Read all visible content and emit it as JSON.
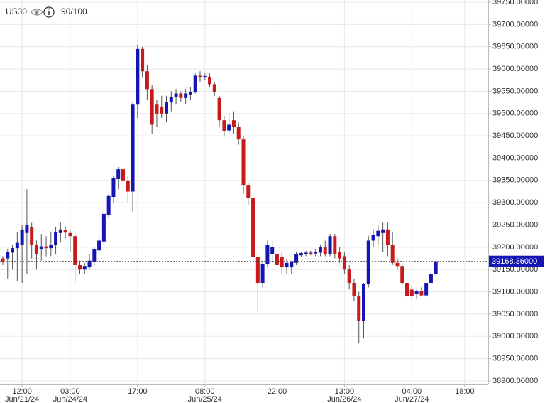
{
  "chart_data": {
    "type": "candlestick",
    "symbol": "US30",
    "indicator": "90/100",
    "up_color": "#1515b4",
    "down_color": "#c81a1a",
    "grid": true,
    "ylim": [
      38893.6,
      39754.8
    ],
    "yticks": [
      {
        "value": 38900,
        "label": "38900.00000"
      },
      {
        "value": 38950,
        "label": "38950.00000"
      },
      {
        "value": 39000,
        "label": "39000.00000"
      },
      {
        "value": 39050,
        "label": "39050.00000"
      },
      {
        "value": 39100,
        "label": "39100.00000"
      },
      {
        "value": 39150,
        "label": "39150.00000"
      },
      {
        "value": 39200,
        "label": "39200.00000"
      },
      {
        "value": 39250,
        "label": "39250.00000"
      },
      {
        "value": 39300,
        "label": "39300.00000"
      },
      {
        "value": 39350,
        "label": "39350.00000"
      },
      {
        "value": 39400,
        "label": "39400.00000"
      },
      {
        "value": 39450,
        "label": "39450.00000"
      },
      {
        "value": 39500,
        "label": "39500.00000"
      },
      {
        "value": 39550,
        "label": "39550.00000"
      },
      {
        "value": 39600,
        "label": "39600.00000"
      },
      {
        "value": 39650,
        "label": "39650.00000"
      },
      {
        "value": 39700,
        "label": "39700.00000"
      },
      {
        "value": 39750,
        "label": "39750.00000"
      }
    ],
    "last_price": {
      "value": 39168.36,
      "label": "39168.36000"
    },
    "categories": [
      null,
      null,
      null,
      null,
      "12:00",
      null,
      null,
      null,
      null,
      null,
      null,
      null,
      null,
      null,
      "03:00",
      null,
      null,
      null,
      null,
      null,
      null,
      null,
      null,
      null,
      null,
      null,
      null,
      null,
      "17:00",
      null,
      null,
      null,
      null,
      null,
      null,
      null,
      null,
      null,
      null,
      null,
      null,
      null,
      "08:00",
      null,
      null,
      null,
      null,
      null,
      null,
      null,
      null,
      null,
      null,
      null,
      null,
      null,
      null,
      "22:00",
      null,
      null,
      null,
      null,
      null,
      null,
      null,
      null,
      null,
      null,
      null,
      null,
      null,
      "13:00",
      null,
      null,
      null,
      null,
      null,
      null,
      null,
      null,
      null,
      null,
      null,
      null,
      null,
      "04:00",
      null,
      null,
      null,
      null,
      null,
      null,
      null,
      null,
      null,
      null,
      "18:00"
    ],
    "category_dates": [
      null,
      null,
      null,
      null,
      "Jun/21/24",
      null,
      null,
      null,
      null,
      null,
      null,
      null,
      null,
      null,
      "Jun/24/24",
      null,
      null,
      null,
      null,
      null,
      null,
      null,
      null,
      null,
      null,
      null,
      null,
      null,
      null,
      null,
      null,
      null,
      null,
      null,
      null,
      null,
      null,
      null,
      null,
      null,
      null,
      null,
      "Jun/25/24",
      null,
      null,
      null,
      null,
      null,
      null,
      null,
      null,
      null,
      null,
      null,
      null,
      null,
      null,
      null,
      null,
      null,
      null,
      null,
      null,
      null,
      null,
      null,
      null,
      null,
      null,
      null,
      null,
      "Jun/26/24",
      null,
      null,
      null,
      null,
      null,
      null,
      null,
      null,
      null,
      null,
      null,
      null,
      null,
      "Jun/27/24",
      null,
      null,
      null,
      null,
      null,
      null,
      null,
      null,
      null,
      null,
      null
    ],
    "open": [
      39175,
      39175,
      39188,
      39198,
      39205,
      39232,
      39245,
      39205,
      39195,
      39202,
      39198,
      39205,
      39232,
      39238,
      39232,
      39225,
      39160,
      39150,
      39155,
      39168,
      39193,
      39213,
      39273,
      39313,
      39353,
      39375,
      39350,
      39325,
      39520,
      39645,
      39595,
      39555,
      39520,
      39515,
      39500,
      39525,
      39538,
      39545,
      39535,
      39543,
      39548,
      39585,
      39582,
      39582,
      39566,
      39535,
      39485,
      39462,
      39485,
      39470,
      39442,
      39340,
      39310,
      39178,
      39120,
      39162,
      39185,
      39185,
      39178,
      39155,
      39155,
      39165,
      39182,
      39185,
      39188,
      39186,
      39188,
      39200,
      39185,
      39225,
      39190,
      39180,
      39150,
      39120,
      39090,
      39035,
      39118,
      39215,
      39225,
      39232,
      39240,
      39205,
      39165,
      39158,
      39120,
      39105,
      39095,
      39102,
      39092,
      39120,
      39140,
      null,
      null,
      null,
      null,
      null,
      null
    ],
    "high": [
      39180,
      39195,
      39205,
      39235,
      39250,
      39330,
      39255,
      39215,
      39230,
      39225,
      39235,
      39245,
      39255,
      39245,
      39240,
      39230,
      39170,
      39165,
      39185,
      39200,
      39225,
      39280,
      39320,
      39360,
      39380,
      39380,
      39360,
      39525,
      39655,
      39650,
      39610,
      39565,
      39530,
      39540,
      39540,
      39550,
      39555,
      39550,
      39555,
      39560,
      39590,
      39595,
      39590,
      39590,
      39570,
      39540,
      39495,
      39500,
      39505,
      39480,
      39450,
      39345,
      39315,
      39185,
      39170,
      39215,
      39215,
      39195,
      39190,
      39175,
      39170,
      39190,
      39190,
      39192,
      39192,
      39195,
      39205,
      39215,
      39230,
      39230,
      39200,
      39190,
      39160,
      39130,
      39100,
      39120,
      39225,
      39240,
      39250,
      39255,
      39255,
      39235,
      39175,
      39165,
      39130,
      39115,
      39105,
      39110,
      39125,
      39145,
      39170,
      null,
      null,
      null,
      null,
      null,
      null
    ],
    "low": [
      39160,
      39130,
      39150,
      39125,
      39120,
      39140,
      39175,
      39150,
      39170,
      39180,
      39180,
      39185,
      39210,
      39220,
      39190,
      39120,
      39140,
      39140,
      39150,
      39160,
      39185,
      39205,
      39265,
      39300,
      39330,
      39340,
      39300,
      39280,
      39490,
      39580,
      39530,
      39455,
      39470,
      39490,
      39480,
      39505,
      39520,
      39525,
      39520,
      39530,
      39545,
      39570,
      39575,
      39560,
      39540,
      39470,
      39450,
      39455,
      39455,
      39430,
      39320,
      39295,
      39170,
      39055,
      39110,
      39155,
      39165,
      39150,
      39140,
      39140,
      39140,
      39160,
      39178,
      39180,
      39182,
      39180,
      39180,
      39180,
      39180,
      39175,
      39165,
      39140,
      39105,
      39080,
      38985,
      38995,
      39110,
      39200,
      39205,
      39190,
      39180,
      39160,
      39150,
      39115,
      39065,
      39085,
      39085,
      39090,
      39088,
      39115,
      39135,
      null,
      null,
      null,
      null,
      null,
      null
    ],
    "close": [
      39168,
      39190,
      39198,
      39210,
      39240,
      39250,
      39205,
      39185,
      39202,
      39198,
      39205,
      39235,
      39240,
      39233,
      39225,
      39160,
      39150,
      39158,
      39170,
      39195,
      39215,
      39275,
      39315,
      39355,
      39375,
      39350,
      39325,
      39520,
      39645,
      39595,
      39555,
      39475,
      39500,
      39500,
      39525,
      39538,
      39545,
      39535,
      39545,
      39548,
      39585,
      39582,
      39584,
      39566,
      39548,
      39485,
      39460,
      39475,
      39470,
      39442,
      39340,
      39310,
      39178,
      39120,
      39162,
      39205,
      39200,
      39160,
      39155,
      39165,
      39168,
      39185,
      39187,
      39188,
      39185,
      39190,
      39200,
      39185,
      39225,
      39185,
      39175,
      39150,
      39120,
      39090,
      39035,
      39118,
      39215,
      39228,
      39237,
      39240,
      39205,
      39165,
      39158,
      39120,
      39090,
      39090,
      39102,
      39092,
      39120,
      39140,
      39168.36,
      null,
      null,
      null,
      null,
      null,
      null
    ]
  }
}
